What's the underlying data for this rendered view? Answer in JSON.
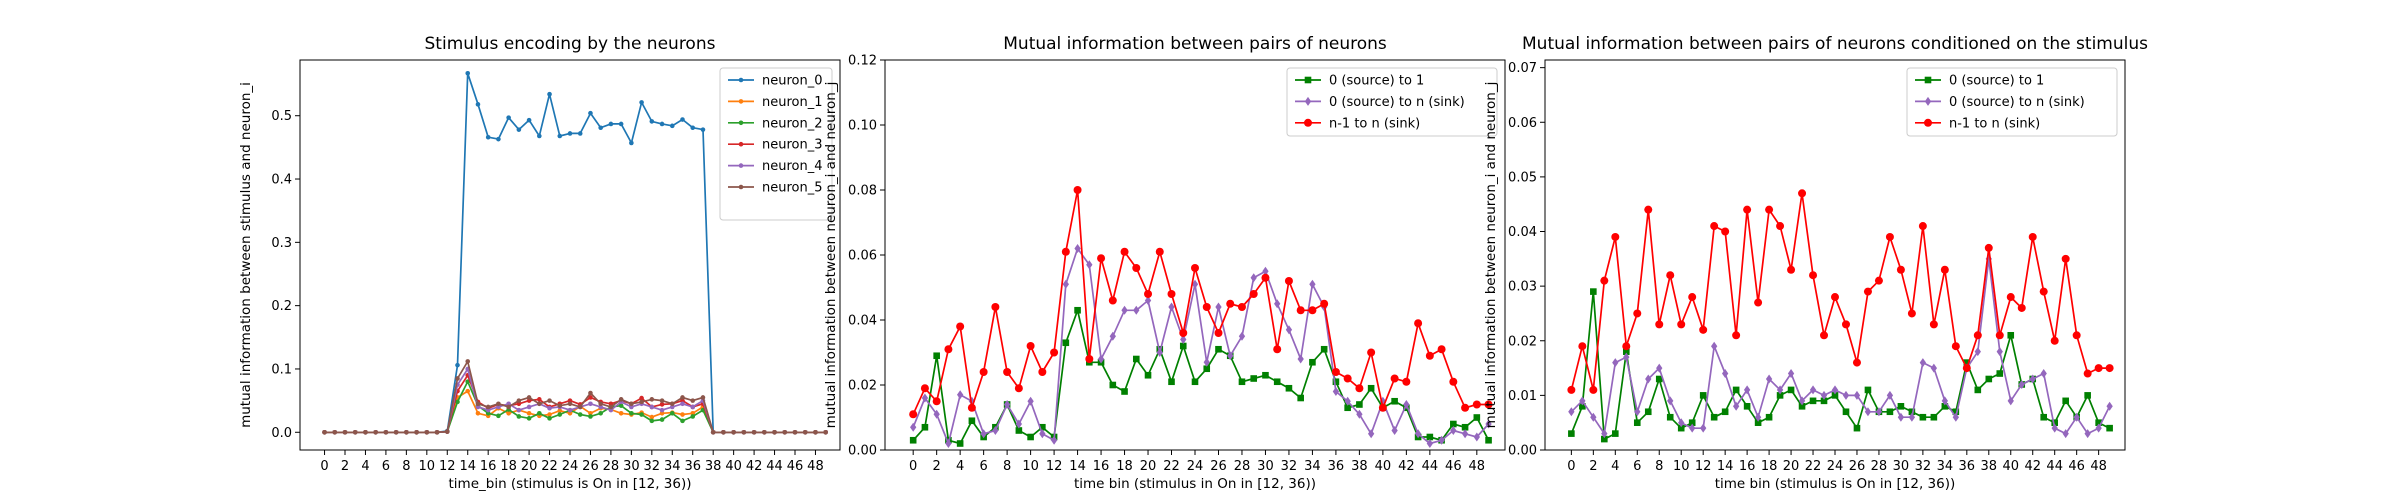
{
  "chart_data": [
    {
      "type": "line",
      "title": "Stimulus encoding by the neurons",
      "xlabel": "time_bin (stimulus is On in [12, 36))",
      "ylabel": "mutual information between stimulus and neuron_i",
      "xlim": [
        -2.4,
        50.4
      ],
      "ylim": [
        -0.028,
        0.588
      ],
      "xticks": [
        0,
        2,
        4,
        6,
        8,
        10,
        12,
        14,
        16,
        18,
        20,
        22,
        24,
        26,
        28,
        30,
        32,
        34,
        36,
        38,
        40,
        42,
        44,
        46,
        48
      ],
      "yticks": [
        0.0,
        0.1,
        0.2,
        0.3,
        0.4,
        0.5
      ],
      "ytick_labels": [
        "0.0",
        "0.1",
        "0.2",
        "0.3",
        "0.4",
        "0.5"
      ],
      "legend_position": "top-right",
      "series": [
        {
          "name": "neuron_0",
          "color": "#1f77b4",
          "marker": "dot",
          "values": [
            0,
            0,
            0,
            0,
            0,
            0,
            0,
            0,
            0,
            0,
            0,
            0,
            0.002,
            0.106,
            0.567,
            0.518,
            0.466,
            0.463,
            0.497,
            0.478,
            0.493,
            0.468,
            0.534,
            0.468,
            0.472,
            0.472,
            0.504,
            0.481,
            0.487,
            0.487,
            0.457,
            0.521,
            0.491,
            0.487,
            0.484,
            0.494,
            0.481,
            0.478,
            0,
            0,
            0,
            0,
            0,
            0,
            0,
            0,
            0,
            0,
            0,
            0
          ]
        },
        {
          "name": "neuron_1",
          "color": "#ff7f0e",
          "marker": "dot",
          "values": [
            0,
            0,
            0,
            0,
            0,
            0,
            0,
            0,
            0,
            0,
            0,
            0,
            0.001,
            0.055,
            0.065,
            0.03,
            0.026,
            0.038,
            0.03,
            0.035,
            0.03,
            0.026,
            0.028,
            0.034,
            0.03,
            0.041,
            0.03,
            0.038,
            0.036,
            0.03,
            0.028,
            0.031,
            0.024,
            0.03,
            0.031,
            0.028,
            0.03,
            0.04,
            0,
            0,
            0,
            0,
            0,
            0,
            0,
            0,
            0,
            0,
            0,
            0
          ]
        },
        {
          "name": "neuron_2",
          "color": "#2ca02c",
          "marker": "dot",
          "values": [
            0,
            0,
            0,
            0,
            0,
            0,
            0,
            0,
            0,
            0,
            0,
            0,
            0.001,
            0.048,
            0.08,
            0.042,
            0.03,
            0.026,
            0.036,
            0.025,
            0.022,
            0.03,
            0.022,
            0.028,
            0.035,
            0.028,
            0.025,
            0.03,
            0.04,
            0.042,
            0.03,
            0.028,
            0.018,
            0.02,
            0.03,
            0.018,
            0.025,
            0.035,
            0,
            0,
            0,
            0,
            0,
            0,
            0,
            0,
            0,
            0,
            0,
            0
          ]
        },
        {
          "name": "neuron_3",
          "color": "#d62728",
          "marker": "dot",
          "values": [
            0,
            0,
            0,
            0,
            0,
            0,
            0,
            0,
            0,
            0,
            0,
            0,
            0.001,
            0.065,
            0.09,
            0.048,
            0.038,
            0.044,
            0.042,
            0.045,
            0.05,
            0.052,
            0.04,
            0.045,
            0.05,
            0.044,
            0.055,
            0.048,
            0.045,
            0.05,
            0.045,
            0.054,
            0.04,
            0.044,
            0.045,
            0.05,
            0.04,
            0.045,
            0,
            0,
            0,
            0,
            0,
            0,
            0,
            0,
            0,
            0,
            0,
            0
          ]
        },
        {
          "name": "neuron_4",
          "color": "#9467bd",
          "marker": "dot",
          "values": [
            0,
            0,
            0,
            0,
            0,
            0,
            0,
            0,
            0,
            0,
            0,
            0,
            0.001,
            0.075,
            0.1,
            0.04,
            0.035,
            0.04,
            0.045,
            0.035,
            0.04,
            0.045,
            0.038,
            0.04,
            0.035,
            0.04,
            0.045,
            0.04,
            0.035,
            0.048,
            0.04,
            0.045,
            0.04,
            0.035,
            0.04,
            0.045,
            0.04,
            0.05,
            0,
            0,
            0,
            0,
            0,
            0,
            0,
            0,
            0,
            0,
            0,
            0
          ]
        },
        {
          "name": "neuron_5",
          "color": "#8c564b",
          "marker": "dot",
          "values": [
            0,
            0,
            0,
            0,
            0,
            0,
            0,
            0,
            0,
            0,
            0,
            0,
            0.001,
            0.085,
            0.112,
            0.045,
            0.04,
            0.045,
            0.04,
            0.05,
            0.055,
            0.045,
            0.05,
            0.042,
            0.045,
            0.04,
            0.062,
            0.045,
            0.04,
            0.052,
            0.045,
            0.048,
            0.052,
            0.05,
            0.045,
            0.055,
            0.05,
            0.055,
            0,
            0,
            0,
            0,
            0,
            0,
            0,
            0,
            0,
            0,
            0,
            0
          ]
        }
      ]
    },
    {
      "type": "line",
      "title": "Mutual information between pairs of neurons",
      "xlabel": "time bin (stimulus in On in [12, 36))",
      "ylabel": "mutual information between neuron_i and neuron_j",
      "xlim": [
        -2.4,
        50.4
      ],
      "ylim": [
        0,
        0.12
      ],
      "xticks": [
        0,
        2,
        4,
        6,
        8,
        10,
        12,
        14,
        16,
        18,
        20,
        22,
        24,
        26,
        28,
        30,
        32,
        34,
        36,
        38,
        40,
        42,
        44,
        46,
        48
      ],
      "yticks": [
        0.0,
        0.02,
        0.04,
        0.06,
        0.08,
        0.1,
        0.12
      ],
      "ytick_labels": [
        "0.00",
        "0.02",
        "0.04",
        "0.06",
        "0.08",
        "0.10",
        "0.12"
      ],
      "legend_position": "top-right",
      "series": [
        {
          "name": "0 (source) to 1",
          "color": "#008000",
          "marker": "square",
          "values": [
            0.003,
            0.007,
            0.029,
            0.003,
            0.002,
            0.009,
            0.004,
            0.007,
            0.014,
            0.006,
            0.004,
            0.007,
            0.004,
            0.033,
            0.043,
            0.027,
            0.027,
            0.02,
            0.018,
            0.028,
            0.023,
            0.031,
            0.021,
            0.032,
            0.021,
            0.025,
            0.031,
            0.029,
            0.021,
            0.022,
            0.023,
            0.021,
            0.019,
            0.016,
            0.027,
            0.031,
            0.021,
            0.013,
            0.014,
            0.019,
            0.013,
            0.015,
            0.013,
            0.004,
            0.004,
            0.003,
            0.008,
            0.007,
            0.01,
            0.003
          ]
        },
        {
          "name": "0 (source) to n (sink)",
          "color": "#9467bd",
          "marker": "diamond",
          "values": [
            0.007,
            0.016,
            0.011,
            0.002,
            0.017,
            0.015,
            0.005,
            0.006,
            0.014,
            0.008,
            0.015,
            0.005,
            0.003,
            0.051,
            0.062,
            0.057,
            0.028,
            0.035,
            0.043,
            0.043,
            0.046,
            0.03,
            0.044,
            0.034,
            0.051,
            0.027,
            0.044,
            0.029,
            0.035,
            0.053,
            0.055,
            0.045,
            0.037,
            0.028,
            0.051,
            0.044,
            0.018,
            0.015,
            0.011,
            0.005,
            0.015,
            0.006,
            0.014,
            0.005,
            0.002,
            0.003,
            0.006,
            0.005,
            0.004,
            0.008
          ]
        },
        {
          "name": "n-1 to n (sink)",
          "color": "#ff0000",
          "marker": "circle",
          "values": [
            0.011,
            0.019,
            0.015,
            0.031,
            0.038,
            0.013,
            0.024,
            0.044,
            0.024,
            0.019,
            0.032,
            0.024,
            0.03,
            0.061,
            0.08,
            0.028,
            0.059,
            0.046,
            0.061,
            0.056,
            0.048,
            0.061,
            0.048,
            0.036,
            0.056,
            0.044,
            0.036,
            0.045,
            0.044,
            0.048,
            0.053,
            0.031,
            0.052,
            0.043,
            0.043,
            0.045,
            0.024,
            0.022,
            0.019,
            0.03,
            0.013,
            0.022,
            0.021,
            0.039,
            0.029,
            0.031,
            0.021,
            0.013,
            0.014,
            0.014
          ]
        }
      ]
    },
    {
      "type": "line",
      "title": "Mutual information between pairs of neurons conditioned on the stimulus",
      "xlabel": "time bin (stimulus is On in [12, 36))",
      "ylabel": "mutual information between neuron_i and neuron_j",
      "xlim": [
        -2.4,
        50.4
      ],
      "ylim": [
        0,
        0.0714
      ],
      "xticks": [
        0,
        2,
        4,
        6,
        8,
        10,
        12,
        14,
        16,
        18,
        20,
        22,
        24,
        26,
        28,
        30,
        32,
        34,
        36,
        38,
        40,
        42,
        44,
        46,
        48
      ],
      "yticks": [
        0.0,
        0.01,
        0.02,
        0.03,
        0.04,
        0.05,
        0.06,
        0.07
      ],
      "ytick_labels": [
        "0.00",
        "0.01",
        "0.02",
        "0.03",
        "0.04",
        "0.05",
        "0.06",
        "0.07"
      ],
      "legend_position": "top-right",
      "series": [
        {
          "name": "0 (source) to 1",
          "color": "#008000",
          "marker": "square",
          "values": [
            0.003,
            0.008,
            0.029,
            0.002,
            0.003,
            0.018,
            0.005,
            0.007,
            0.013,
            0.006,
            0.004,
            0.005,
            0.01,
            0.006,
            0.007,
            0.011,
            0.008,
            0.005,
            0.006,
            0.01,
            0.011,
            0.008,
            0.009,
            0.009,
            0.01,
            0.007,
            0.004,
            0.011,
            0.007,
            0.007,
            0.008,
            0.007,
            0.006,
            0.006,
            0.008,
            0.007,
            0.016,
            0.011,
            0.013,
            0.014,
            0.021,
            0.012,
            0.013,
            0.006,
            0.005,
            0.009,
            0.006,
            0.01,
            0.005,
            0.004
          ]
        },
        {
          "name": "0 (source) to n (sink)",
          "color": "#9467bd",
          "marker": "diamond",
          "values": [
            0.007,
            0.009,
            0.006,
            0.003,
            0.016,
            0.017,
            0.007,
            0.013,
            0.015,
            0.009,
            0.005,
            0.004,
            0.004,
            0.019,
            0.014,
            0.008,
            0.011,
            0.006,
            0.013,
            0.011,
            0.014,
            0.009,
            0.011,
            0.01,
            0.011,
            0.01,
            0.01,
            0.007,
            0.007,
            0.01,
            0.006,
            0.006,
            0.016,
            0.015,
            0.009,
            0.006,
            0.015,
            0.018,
            0.035,
            0.018,
            0.009,
            0.012,
            0.013,
            0.014,
            0.004,
            0.003,
            0.006,
            0.003,
            0.004,
            0.008
          ]
        },
        {
          "name": "n-1 to n (sink)",
          "color": "#ff0000",
          "marker": "circle",
          "values": [
            0.011,
            0.019,
            0.011,
            0.031,
            0.039,
            0.019,
            0.025,
            0.044,
            0.023,
            0.032,
            0.023,
            0.028,
            0.022,
            0.041,
            0.04,
            0.021,
            0.044,
            0.027,
            0.044,
            0.041,
            0.033,
            0.047,
            0.032,
            0.021,
            0.028,
            0.023,
            0.016,
            0.029,
            0.031,
            0.039,
            0.033,
            0.025,
            0.041,
            0.023,
            0.033,
            0.019,
            0.015,
            0.021,
            0.037,
            0.021,
            0.028,
            0.026,
            0.039,
            0.029,
            0.02,
            0.035,
            0.021,
            0.014,
            0.015,
            0.015
          ]
        }
      ]
    }
  ]
}
